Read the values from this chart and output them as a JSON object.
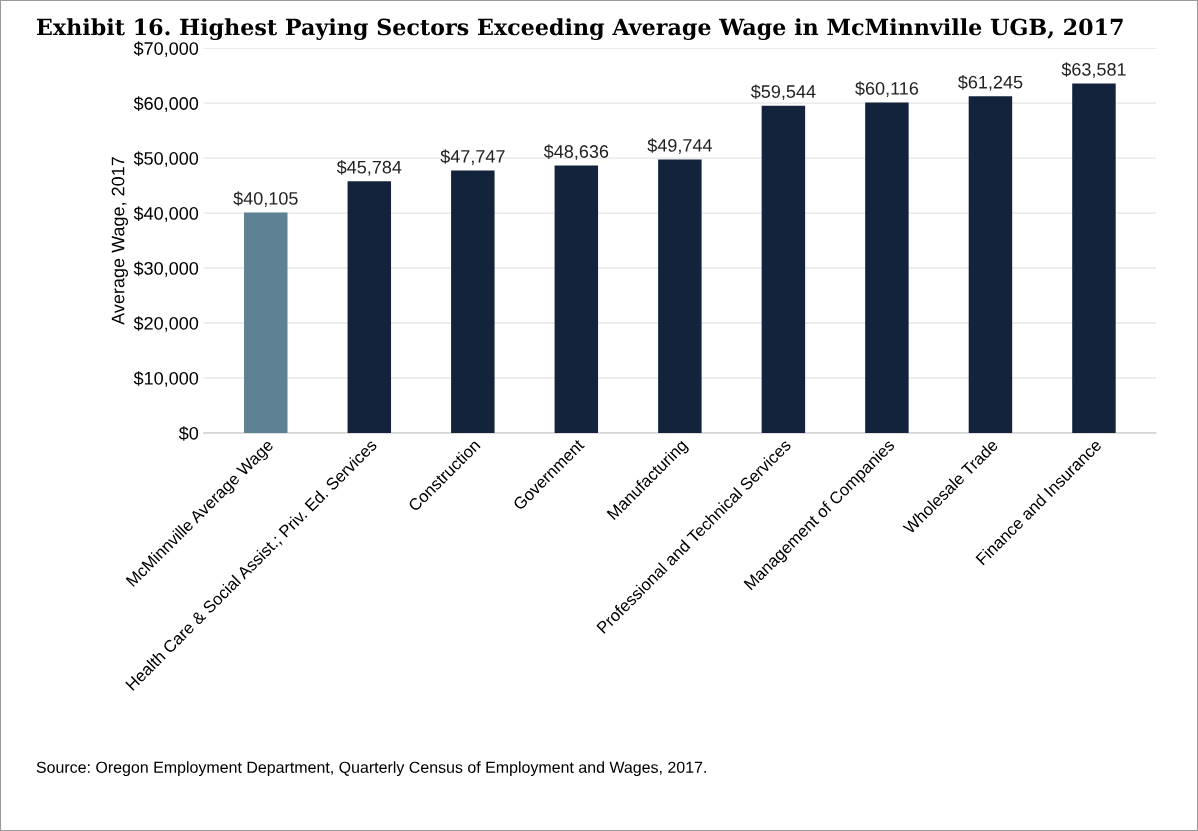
{
  "chart_data": {
    "type": "bar",
    "title": "Exhibit 16. Highest Paying Sectors Exceeding Average Wage in McMinnville UGB, 2017",
    "ylabel": "Average Wage, 2017",
    "categories": [
      "McMinnville Average Wage",
      "Health Care & Social Assist.; Priv. Ed. Services",
      "Construction",
      "Government",
      "Manufacturing",
      "Professional and Technical Services",
      "Management of Companies",
      "Wholesale Trade",
      "Finance and Insurance"
    ],
    "values": [
      40105,
      45784,
      47747,
      48636,
      49744,
      59544,
      60116,
      61245,
      63581
    ],
    "colors": [
      "#5e8194",
      "#13233b",
      "#13233b",
      "#13233b",
      "#13233b",
      "#13233b",
      "#13233b",
      "#13233b",
      "#13233b"
    ],
    "value_labels": [
      "$40,105",
      "$45,784",
      "$47,747",
      "$48,636",
      "$49,744",
      "$59,544",
      "$60,116",
      "$61,245",
      "$63,581"
    ],
    "ylim": [
      0,
      70000
    ],
    "yticks": [
      {
        "value": 0,
        "label": "$0"
      },
      {
        "value": 10000,
        "label": "$10,000"
      },
      {
        "value": 20000,
        "label": "$20,000"
      },
      {
        "value": 30000,
        "label": "$30,000"
      },
      {
        "value": 40000,
        "label": "$40,000"
      },
      {
        "value": 50000,
        "label": "$50,000"
      },
      {
        "value": 60000,
        "label": "$60,000"
      },
      {
        "value": 70000,
        "label": "$70,000"
      }
    ],
    "grid": "y",
    "annotations": [
      "Source: Oregon Employment Department, Quarterly Census of Employment and Wages, 2017."
    ]
  }
}
